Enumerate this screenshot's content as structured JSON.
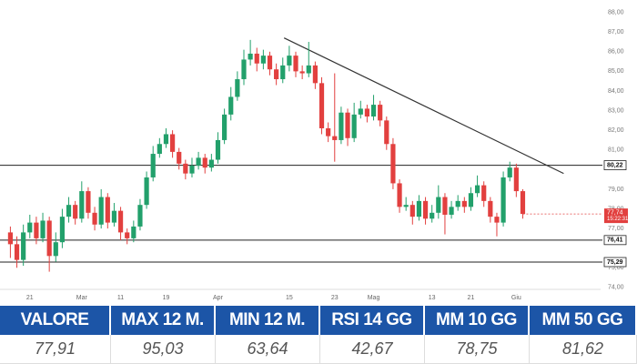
{
  "chart_data": {
    "type": "candlestick",
    "up_color": "#22a06b",
    "down_color": "#e2403f",
    "ylim": [
      73.9,
      88.4
    ],
    "yticks": [
      {
        "value": 74,
        "label": "74,00"
      },
      {
        "value": 75,
        "label": "75,00"
      },
      {
        "value": 77,
        "label": "77,00"
      },
      {
        "value": 78,
        "label": "78,00"
      },
      {
        "value": 79,
        "label": "79,00"
      },
      {
        "value": 81,
        "label": "81,00"
      },
      {
        "value": 82,
        "label": "82,00"
      },
      {
        "value": 83,
        "label": "83,00"
      },
      {
        "value": 84,
        "label": "84,00"
      },
      {
        "value": 85,
        "label": "85,00"
      },
      {
        "value": 86,
        "label": "86,00"
      },
      {
        "value": 87,
        "label": "87,00"
      },
      {
        "value": 88,
        "label": "88,00"
      }
    ],
    "xlim": [
      -1.6,
      91
    ],
    "xticks": [
      {
        "value": 3,
        "label": "21"
      },
      {
        "value": 11,
        "label": "Mar"
      },
      {
        "value": 17,
        "label": "11"
      },
      {
        "value": 24,
        "label": "19"
      },
      {
        "value": 32,
        "label": "Apr"
      },
      {
        "value": 43,
        "label": "15"
      },
      {
        "value": 50,
        "label": "23"
      },
      {
        "value": 56,
        "label": "Mag"
      },
      {
        "value": 65,
        "label": "13"
      },
      {
        "value": 71,
        "label": "21"
      },
      {
        "value": 78,
        "label": "Giu"
      }
    ],
    "open": [
      76.8,
      76.2,
      75.4,
      76.8,
      77.3,
      76.5,
      77.4,
      75.6,
      76.3,
      77.6,
      78.2,
      77.5,
      78.9,
      77.8,
      77.2,
      78.6,
      77.3,
      77.9,
      76.8,
      76.5,
      77.1,
      78.2,
      79.6,
      80.8,
      81.3,
      81.8,
      80.9,
      80.3,
      79.8,
      80.2,
      80.6,
      80.1,
      80.5,
      81.5,
      82.8,
      83.7,
      84.6,
      85.6,
      85.9,
      85.4,
      85.8,
      85.1,
      84.6,
      85.3,
      85.8,
      85.0,
      84.9,
      85.3,
      84.4,
      82.1,
      81.7,
      81.5,
      82.9,
      81.6,
      82.8,
      83.1,
      82.7,
      83.3,
      82.5,
      81.3,
      79.3,
      78.1,
      78.2,
      77.6,
      78.4,
      77.5,
      77.8,
      78.6,
      77.7,
      78.1,
      78.4,
      78.1,
      78.8,
      79.2,
      78.4,
      77.6,
      77.3,
      79.6,
      80.1,
      78.9
    ],
    "high": [
      77.1,
      76.6,
      77.2,
      77.7,
      77.6,
      77.8,
      77.6,
      76.8,
      78.0,
      78.6,
      78.4,
      79.4,
      79.1,
      78.1,
      79.0,
      78.8,
      78.3,
      78.1,
      77.0,
      77.4,
      78.5,
      79.9,
      81.2,
      81.6,
      82.1,
      82.0,
      81.1,
      80.5,
      80.6,
      80.9,
      80.8,
      80.8,
      81.9,
      83.1,
      84.2,
      85.0,
      86.1,
      86.6,
      86.2,
      86.1,
      86.0,
      85.4,
      85.7,
      86.3,
      86.0,
      85.3,
      86.5,
      85.5,
      84.7,
      82.4,
      84.9,
      83.2,
      83.1,
      83.4,
      83.5,
      83.3,
      83.8,
      83.5,
      82.7,
      81.6,
      79.5,
      78.6,
      78.4,
      78.7,
      78.6,
      78.2,
      79.2,
      78.8,
      78.4,
      78.7,
      78.6,
      79.1,
      79.7,
      79.4,
      78.6,
      77.8,
      79.9,
      80.4,
      80.3,
      79.0
    ],
    "low": [
      75.5,
      75.0,
      75.1,
      76.5,
      76.2,
      76.3,
      74.8,
      75.3,
      76.0,
      77.3,
      77.2,
      77.3,
      77.5,
      76.9,
      77.0,
      77.0,
      77.1,
      76.4,
      76.2,
      76.3,
      76.9,
      78.0,
      79.4,
      80.6,
      81.1,
      80.6,
      80.0,
      79.5,
      79.6,
      80.0,
      79.8,
      79.9,
      80.3,
      81.3,
      82.5,
      83.5,
      84.3,
      85.3,
      85.0,
      85.1,
      84.8,
      84.3,
      84.4,
      85.0,
      84.7,
      84.6,
      84.7,
      84.1,
      81.8,
      81.4,
      80.4,
      81.3,
      81.2,
      81.4,
      82.6,
      82.4,
      82.5,
      82.2,
      81.0,
      79.0,
      77.8,
      77.9,
      77.2,
      77.4,
      77.2,
      77.3,
      77.5,
      76.7,
      77.5,
      77.9,
      77.8,
      77.9,
      78.6,
      78.1,
      77.3,
      76.6,
      77.1,
      79.4,
      78.6,
      77.5
    ],
    "close": [
      76.2,
      75.4,
      76.8,
      77.3,
      76.5,
      77.4,
      75.6,
      76.3,
      77.6,
      78.2,
      77.5,
      78.9,
      77.8,
      77.2,
      78.6,
      77.3,
      77.9,
      76.8,
      76.5,
      77.1,
      78.2,
      79.6,
      80.8,
      81.3,
      81.8,
      80.9,
      80.3,
      79.8,
      80.2,
      80.6,
      80.1,
      80.5,
      81.5,
      82.8,
      83.7,
      84.6,
      85.6,
      85.9,
      85.4,
      85.8,
      85.1,
      84.6,
      85.3,
      85.8,
      85.0,
      84.9,
      85.3,
      84.4,
      82.1,
      81.7,
      81.5,
      82.9,
      81.6,
      82.8,
      83.1,
      82.7,
      83.3,
      82.5,
      81.3,
      79.3,
      78.1,
      78.2,
      77.6,
      78.4,
      77.5,
      77.8,
      78.6,
      77.7,
      78.1,
      78.4,
      78.1,
      78.8,
      79.2,
      78.4,
      77.6,
      77.3,
      79.6,
      80.1,
      78.9,
      77.74
    ],
    "levels": [
      {
        "value": 80.22,
        "label": "80,22"
      },
      {
        "value": 76.41,
        "label": "76,41"
      },
      {
        "value": 75.29,
        "label": "75,29"
      }
    ],
    "last_price": {
      "value": 77.74,
      "label": "77,74",
      "time": "15:22:31"
    },
    "trendline": {
      "x": [
        42.2,
        85.3
      ],
      "y": [
        86.7,
        79.8
      ]
    }
  },
  "table": {
    "headers": [
      "VALORE",
      "MAX 12 M.",
      "MIN 12 M.",
      "RSI 14 GG",
      "MM 10 GG",
      "MM 50 GG"
    ],
    "values": [
      "77,91",
      "95,03",
      "63,64",
      "42,67",
      "78,75",
      "81,62"
    ]
  }
}
